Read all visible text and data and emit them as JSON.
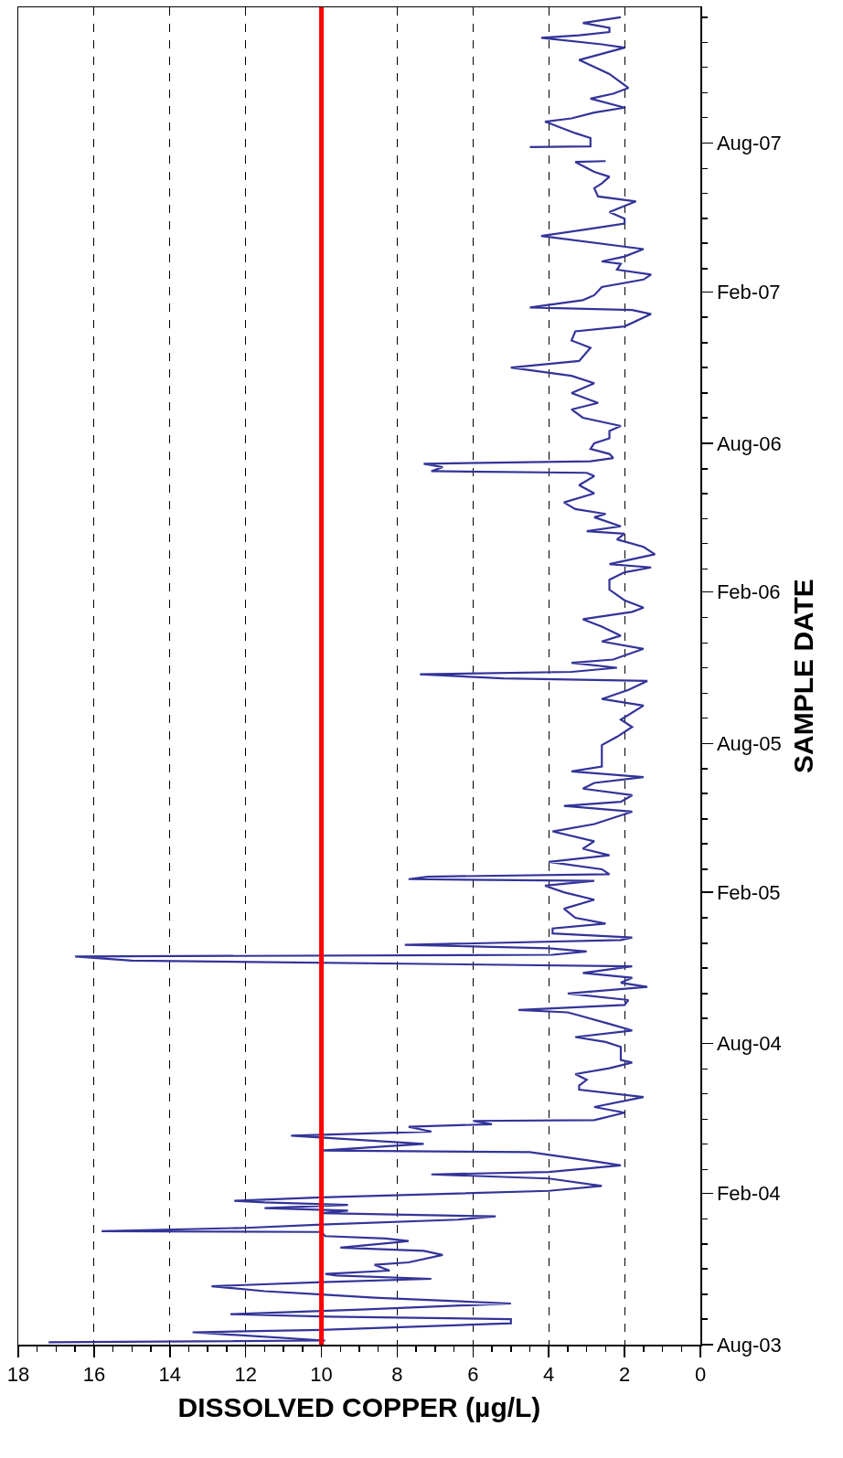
{
  "chart_data": {
    "type": "line",
    "orientation": "horizontal",
    "xlabel": "DISSOLVED COPPER (µg/L)",
    "ylabel": "SAMPLE DATE",
    "x": [
      "2003-08-04",
      "2003-08-06",
      "2003-08-16",
      "2003-08-19",
      "2003-08-27",
      "2003-09-01",
      "2003-09-04",
      "2003-09-07",
      "2003-09-13",
      "2003-09-20",
      "2003-09-27",
      "2003-10-01",
      "2003-10-05",
      "2003-10-11",
      "2003-10-16",
      "2003-10-20",
      "2003-10-24",
      "2003-10-26",
      "2003-10-30",
      "2003-11-06",
      "2003-11-09",
      "2003-11-18",
      "2003-11-23",
      "2003-11-27",
      "2003-12-03",
      "2003-12-05",
      "2003-12-08",
      "2003-12-11",
      "2003-12-16",
      "2003-12-17",
      "2003-12-21",
      "2003-12-25",
      "2003-12-31",
      "2004-01-04",
      "2004-01-08",
      "2004-01-11",
      "2004-01-14",
      "2004-01-18",
      "2004-01-21",
      "2004-01-23",
      "2004-01-27",
      "2004-02-04",
      "2004-02-10",
      "2004-02-19",
      "2004-02-24",
      "2004-02-27",
      "2004-03-06",
      "2004-03-11",
      "2004-03-22",
      "2004-03-24",
      "2004-04-01",
      "2004-04-11",
      "2004-04-16",
      "2004-04-22",
      "2004-04-25",
      "2004-04-29",
      "2004-04-30",
      "2004-05-09",
      "2004-05-16",
      "2004-05-28",
      "2004-06-06",
      "2004-06-11",
      "2004-06-18",
      "2004-06-25",
      "2004-07-02",
      "2004-07-09",
      "2004-07-12",
      "2004-07-28",
      "2004-08-03",
      "2004-08-09",
      "2004-08-17",
      "2004-08-25",
      "2004-09-03",
      "2004-09-08",
      "2004-09-11",
      "2004-09-17",
      "2004-09-23",
      "2004-10-01",
      "2004-10-09",
      "2004-10-14",
      "2004-10-20",
      "2004-10-26",
      "2004-11-03",
      "2004-11-10",
      "2004-11-15",
      "2004-11-17",
      "2004-11-21",
      "2004-11-25",
      "2004-11-29",
      "2004-12-05",
      "2004-12-08",
      "2004-12-13",
      "2004-12-19",
      "2004-12-25",
      "2005-01-01",
      "2005-01-12",
      "2005-01-23",
      "2005-02-01",
      "2005-02-09",
      "2005-02-15",
      "2005-02-17",
      "2005-02-20",
      "2005-02-23",
      "2005-03-01",
      "2005-03-10",
      "2005-03-18",
      "2005-03-26",
      "2005-04-04",
      "2005-04-16",
      "2005-04-25",
      "2005-05-10",
      "2005-05-17",
      "2005-05-22",
      "2005-05-30",
      "2005-06-07",
      "2005-06-14",
      "2005-06-21",
      "2005-06-28",
      "2005-07-04",
      "2005-07-30",
      "2005-08-09",
      "2005-08-21",
      "2005-08-30",
      "2005-09-16",
      "2005-09-24",
      "2005-10-05",
      "2005-10-16",
      "2005-10-19",
      "2005-10-24",
      "2005-10-27",
      "2005-11-01",
      "2005-11-07",
      "2005-11-11",
      "2005-11-24",
      "2005-12-03",
      "2005-12-10",
      "2005-12-21",
      "2005-12-30",
      "2006-01-08",
      "2006-01-13",
      "2006-01-22",
      "2006-02-04",
      "2006-02-16",
      "2006-02-25",
      "2006-03-03",
      "2006-03-07",
      "2006-03-19",
      "2006-03-28",
      "2006-04-06",
      "2006-04-13",
      "2006-04-16",
      "2006-04-22",
      "2006-05-03",
      "2006-05-07",
      "2006-05-13",
      "2006-05-21",
      "2006-06-01",
      "2006-06-11",
      "2006-06-22",
      "2006-06-26",
      "2006-06-28",
      "2006-07-03",
      "2006-07-07",
      "2006-07-10",
      "2006-07-14",
      "2006-07-19",
      "2006-07-25",
      "2006-08-01",
      "2006-08-07",
      "2006-08-16",
      "2006-08-22",
      "2006-09-01",
      "2006-09-11",
      "2006-09-19",
      "2006-10-01",
      "2006-10-13",
      "2006-10-22",
      "2006-11-01",
      "2006-11-09",
      "2006-11-25",
      "2006-12-04",
      "2006-12-15",
      "2006-12-21",
      "2007-01-05",
      "2007-01-10",
      "2007-01-13",
      "2007-01-22",
      "2007-01-28",
      "2007-02-07",
      "2007-02-16",
      "2007-02-22",
      "2007-02-28",
      "2007-03-07",
      "2007-03-10",
      "2007-03-16",
      "2007-03-25",
      "2007-04-10",
      "2007-04-18",
      "2007-04-25",
      "2007-05-01",
      "2007-05-09",
      "2007-05-22",
      "2007-05-28",
      "2007-06-07",
      "2007-06-13",
      "2007-06-21",
      "2007-06-27",
      "2007-07-09",
      "2007-07-10",
      "2007-07-20",
      "2007-07-27",
      "2007-07-28",
      "2007-08-07",
      "2007-08-13",
      "2007-08-27",
      "2007-08-31",
      "2007-09-07",
      "2007-09-13",
      "2007-09-24",
      "2007-09-30",
      "2007-10-07",
      "2007-10-24",
      "2007-11-10",
      "2007-11-25",
      "2007-11-29",
      "2007-12-07",
      "2007-12-10",
      "2007-12-14",
      "2007-12-19",
      "2007-12-25",
      "2008-01-01"
    ],
    "series": [
      {
        "color": "#333399",
        "values": [
          17.2,
          9.9,
          13.4,
          10.0,
          5.0,
          5.0,
          9.8,
          12.4,
          8.8,
          5.0,
          8.6,
          10.0,
          11.5,
          12.9,
          10.0,
          7.1,
          9.6,
          9.9,
          8.2,
          8.6,
          7.7,
          6.8,
          7.3,
          9.5,
          8.1,
          7.7,
          8.3,
          9.9,
          10.0,
          15.8,
          12.0,
          10.0,
          6.4,
          5.4,
          10.0,
          9.3,
          11.5,
          9.3,
          11.5,
          12.3,
          10.0,
          4.0,
          2.6,
          4.0,
          7.1,
          4.0,
          2.1,
          2.8,
          4.5,
          10.0,
          7.3,
          10.8,
          7.1,
          7.7,
          5.5,
          6.0,
          2.8,
          2.0,
          2.8,
          1.5,
          3.2,
          3.2,
          3.0,
          3.3,
          2.4,
          1.8,
          2.1,
          2.1,
          2.5,
          3.3,
          1.8,
          2.4,
          3.1,
          3.5,
          4.8,
          2.0,
          1.9,
          3.5,
          1.4,
          2.1,
          1.8,
          3.1,
          1.8,
          15.0,
          16.5,
          3.9,
          3.0,
          4.0,
          7.8,
          2.1,
          1.8,
          3.9,
          3.9,
          2.5,
          3.3,
          3.6,
          2.8,
          3.6,
          4.1,
          2.8,
          7.7,
          7.2,
          2.4,
          2.6,
          4.0,
          2.4,
          3.1,
          2.8,
          3.9,
          2.8,
          1.8,
          3.6,
          2.1,
          1.8,
          3.1,
          2.8,
          1.5,
          3.4,
          2.6,
          2.6,
          2.2,
          1.8,
          2.1,
          1.5,
          2.6,
          1.9,
          1.4,
          5.2,
          7.4,
          3.4,
          2.2,
          3.4,
          2.3,
          1.5,
          2.6,
          2.1,
          2.6,
          3.1,
          1.8,
          1.5,
          2.0,
          2.4,
          2.4,
          2.0,
          1.3,
          2.4,
          1.2,
          1.5,
          2.2,
          2.0,
          3.0,
          2.1,
          2.8,
          2.5,
          3.3,
          3.6,
          2.8,
          3.2,
          2.8,
          3.0,
          7.1,
          6.8,
          7.3,
          2.9,
          2.3,
          2.4,
          2.9,
          2.8,
          2.4,
          2.4,
          2.1,
          3.1,
          3.4,
          2.7,
          3.4,
          2.8,
          3.4,
          5.0,
          3.2,
          2.9,
          3.4,
          3.3,
          2.0,
          1.3,
          1.8,
          4.5,
          3.1,
          2.8,
          2.6,
          1.5,
          1.3,
          2.2,
          2.1,
          2.6,
          2.0,
          1.5,
          4.2,
          3.0,
          2.0,
          2.0,
          2.4,
          1.7,
          2.7,
          2.8,
          2.6,
          2.4,
          2.8,
          3.3,
          2.5,
          null,
          4.5,
          2.9,
          2.9,
          3.3,
          4.1,
          3.4,
          2.8,
          2.0,
          2.9,
          2.3,
          1.9,
          2.4,
          3.2,
          2.0,
          2.6,
          4.2,
          3.2,
          2.4,
          2.4,
          3.1,
          2.1
        ]
      }
    ],
    "ylim": [
      "2003-08-01",
      "2008-01-13"
    ],
    "yticks": [
      {
        "value": "2003-08-01",
        "label": "Aug-03"
      },
      {
        "value": "2003-09-01",
        "label": null
      },
      {
        "value": "2003-10-01",
        "label": null
      },
      {
        "value": "2003-11-01",
        "label": null
      },
      {
        "value": "2003-12-01",
        "label": null
      },
      {
        "value": "2004-01-01",
        "label": null
      },
      {
        "value": "2004-02-01",
        "label": "Feb-04"
      },
      {
        "value": "2004-03-01",
        "label": null
      },
      {
        "value": "2004-04-01",
        "label": null
      },
      {
        "value": "2004-05-01",
        "label": null
      },
      {
        "value": "2004-06-01",
        "label": null
      },
      {
        "value": "2004-07-01",
        "label": null
      },
      {
        "value": "2004-08-01",
        "label": "Aug-04"
      },
      {
        "value": "2004-09-01",
        "label": null
      },
      {
        "value": "2004-10-01",
        "label": null
      },
      {
        "value": "2004-11-01",
        "label": null
      },
      {
        "value": "2004-12-01",
        "label": null
      },
      {
        "value": "2005-01-01",
        "label": null
      },
      {
        "value": "2005-02-01",
        "label": "Feb-05"
      },
      {
        "value": "2005-03-01",
        "label": null
      },
      {
        "value": "2005-04-01",
        "label": null
      },
      {
        "value": "2005-05-01",
        "label": null
      },
      {
        "value": "2005-06-01",
        "label": null
      },
      {
        "value": "2005-07-01",
        "label": null
      },
      {
        "value": "2005-08-01",
        "label": "Aug-05"
      },
      {
        "value": "2005-09-01",
        "label": null
      },
      {
        "value": "2005-10-01",
        "label": null
      },
      {
        "value": "2005-11-01",
        "label": null
      },
      {
        "value": "2005-12-01",
        "label": null
      },
      {
        "value": "2006-01-01",
        "label": null
      },
      {
        "value": "2006-02-01",
        "label": "Feb-06"
      },
      {
        "value": "2006-03-01",
        "label": null
      },
      {
        "value": "2006-04-01",
        "label": null
      },
      {
        "value": "2006-05-01",
        "label": null
      },
      {
        "value": "2006-06-01",
        "label": null
      },
      {
        "value": "2006-07-01",
        "label": null
      },
      {
        "value": "2006-08-01",
        "label": "Aug-06"
      },
      {
        "value": "2006-09-01",
        "label": null
      },
      {
        "value": "2006-10-01",
        "label": null
      },
      {
        "value": "2006-11-01",
        "label": null
      },
      {
        "value": "2006-12-01",
        "label": null
      },
      {
        "value": "2007-01-01",
        "label": null
      },
      {
        "value": "2007-02-01",
        "label": "Feb-07"
      },
      {
        "value": "2007-03-01",
        "label": null
      },
      {
        "value": "2007-04-01",
        "label": null
      },
      {
        "value": "2007-05-01",
        "label": null
      },
      {
        "value": "2007-06-01",
        "label": null
      },
      {
        "value": "2007-07-01",
        "label": null
      },
      {
        "value": "2007-08-01",
        "label": "Aug-07"
      },
      {
        "value": "2007-09-01",
        "label": null
      },
      {
        "value": "2007-10-01",
        "label": null
      },
      {
        "value": "2007-11-01",
        "label": null
      },
      {
        "value": "2007-12-01",
        "label": null
      },
      {
        "value": "2008-01-01",
        "label": null
      }
    ],
    "xlim": [
      18,
      0
    ],
    "xticks": [
      0,
      {
        "value": 0.5,
        "label": null
      },
      {
        "value": 1,
        "label": null
      },
      {
        "value": 1.5,
        "label": null
      },
      2,
      {
        "value": 2.5,
        "label": null
      },
      {
        "value": 3,
        "label": null
      },
      {
        "value": 3.5,
        "label": null
      },
      4,
      {
        "value": 4.5,
        "label": null
      },
      {
        "value": 5,
        "label": null
      },
      {
        "value": 5.5,
        "label": null
      },
      6,
      {
        "value": 6.5,
        "label": null
      },
      {
        "value": 7,
        "label": null
      },
      {
        "value": 7.5,
        "label": null
      },
      8,
      {
        "value": 8.5,
        "label": null
      },
      {
        "value": 9,
        "label": null
      },
      {
        "value": 9.5,
        "label": null
      },
      10,
      {
        "value": 10.5,
        "label": null
      },
      {
        "value": 11,
        "label": null
      },
      {
        "value": 11.5,
        "label": null
      },
      12,
      {
        "value": 12.5,
        "label": null
      },
      {
        "value": 13,
        "label": null
      },
      {
        "value": 13.5,
        "label": null
      },
      14,
      {
        "value": 14.5,
        "label": null
      },
      {
        "value": 15,
        "label": null
      },
      {
        "value": 15.5,
        "label": null
      },
      16,
      {
        "value": 16.5,
        "label": null
      },
      {
        "value": 17,
        "label": null
      },
      {
        "value": 17.5,
        "label": null
      },
      18
    ],
    "ref_lines": [
      {
        "axis": "x",
        "value": 10,
        "color": "#ff0000"
      }
    ],
    "grid": "x",
    "marker": "none",
    "line_style": "solid"
  }
}
